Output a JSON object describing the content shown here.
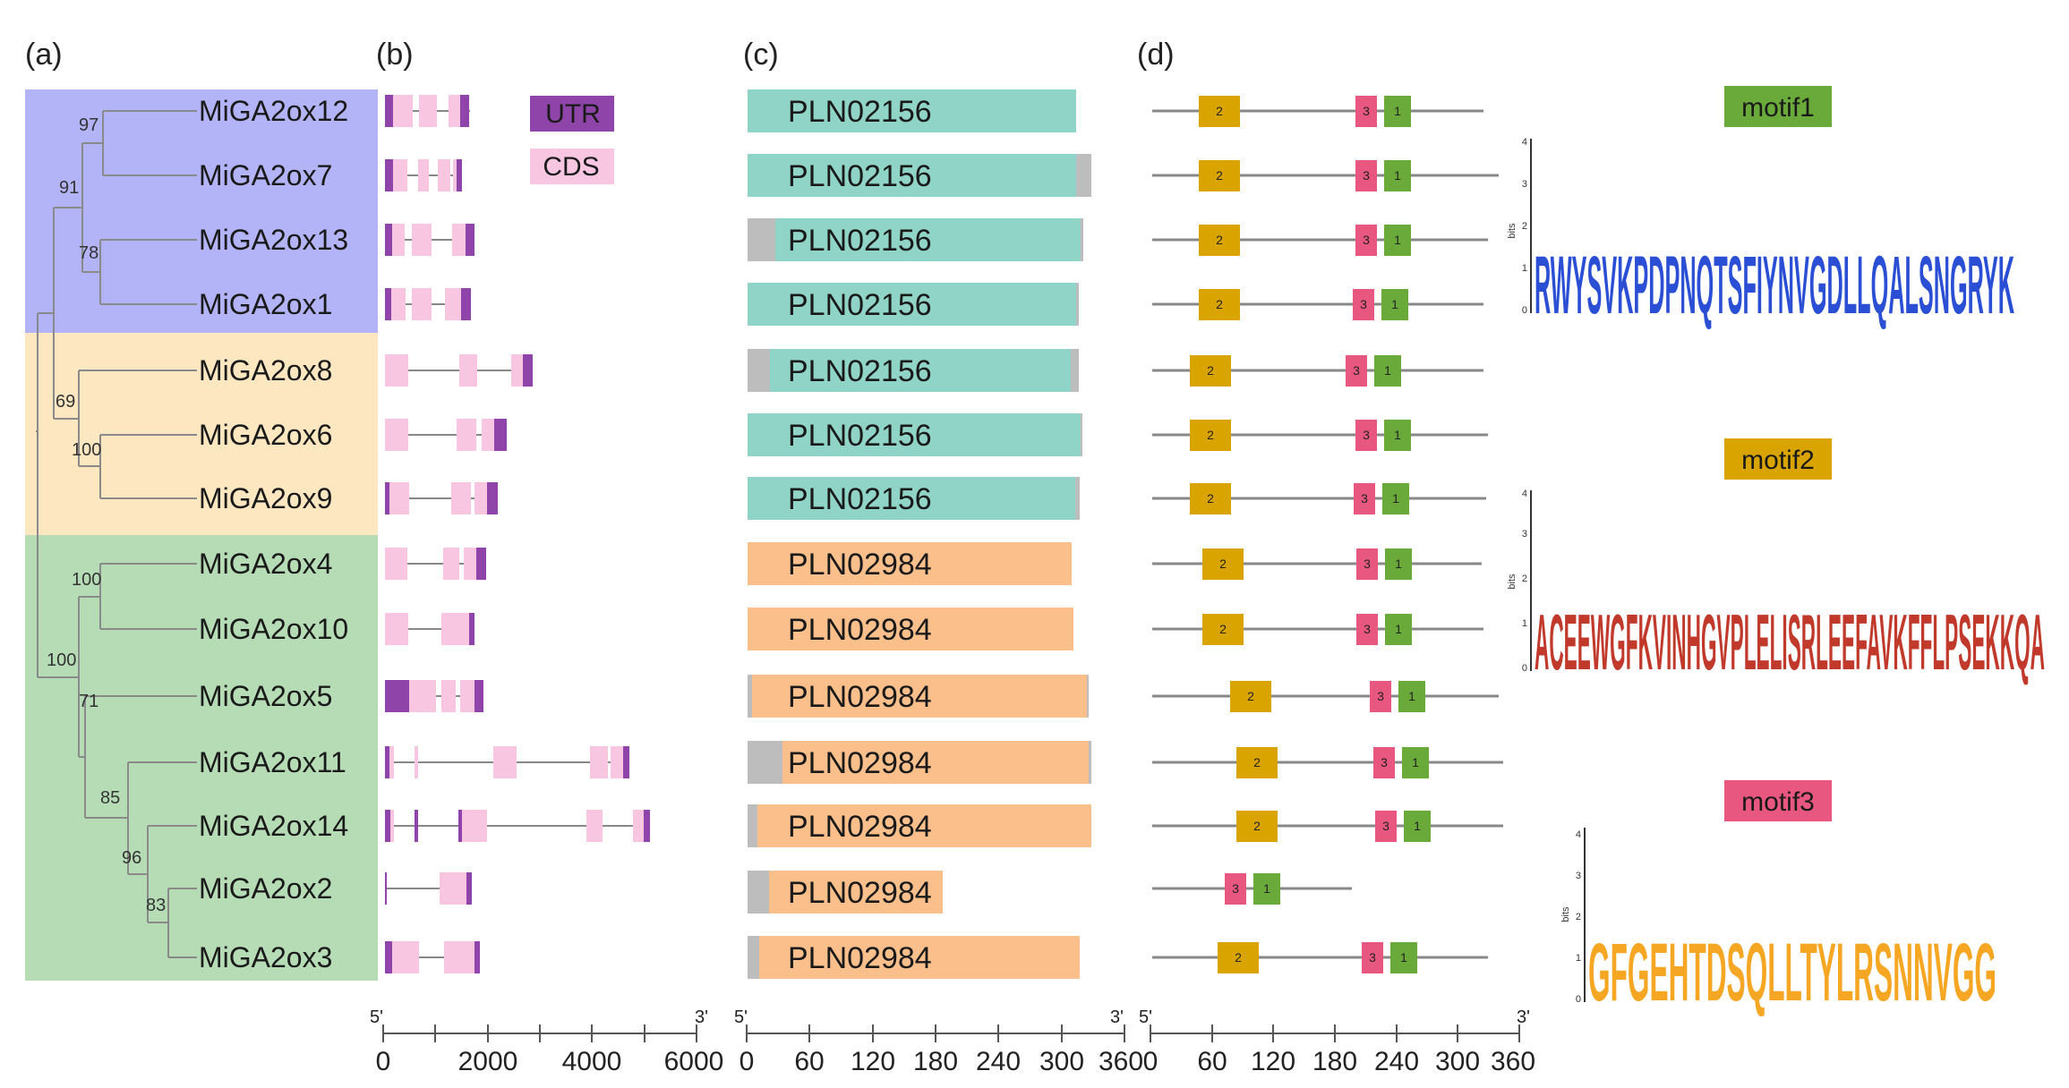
{
  "panels": {
    "a": "(a)",
    "b": "(b)",
    "c": "(c)",
    "d": "(d)"
  },
  "genes": [
    "MiGA2ox12",
    "MiGA2ox7",
    "MiGA2ox13",
    "MiGA2ox1",
    "MiGA2ox8",
    "MiGA2ox6",
    "MiGA2ox9",
    "MiGA2ox4",
    "MiGA2ox10",
    "MiGA2ox5",
    "MiGA2ox11",
    "MiGA2ox14",
    "MiGA2ox2",
    "MiGA2ox3"
  ],
  "bootstrap": [
    "97",
    "91",
    "78",
    "69",
    "100",
    "100",
    "100",
    "71",
    "85",
    "96",
    "83"
  ],
  "legend_b": {
    "utr": "UTR",
    "cds": "CDS"
  },
  "domain_labels": [
    "PLN02156",
    "PLN02156",
    "PLN02156",
    "PLN02156",
    "PLN02156",
    "PLN02156",
    "PLN02156",
    "PLN02984",
    "PLN02984",
    "PLN02984",
    "PLN02984",
    "PLN02984",
    "PLN02984",
    "PLN02984"
  ],
  "motif_numbers": [
    "1",
    "2",
    "3"
  ],
  "axis_end_labels": {
    "five": "5'",
    "three": "3'"
  },
  "axis_b": {
    "ticks": [
      "0",
      "2000",
      "4000",
      "6000"
    ]
  },
  "axis_c": {
    "ticks": [
      "0",
      "60",
      "120",
      "180",
      "240",
      "300",
      "360"
    ]
  },
  "axis_d": {
    "ticks": [
      "0",
      "60",
      "120",
      "180",
      "240",
      "300",
      "360"
    ]
  },
  "logos": [
    {
      "title": "motif1",
      "ylabel": "bits",
      "yticks": [
        "0",
        "1",
        "2",
        "3",
        "4"
      ],
      "consensus": "RWYSVKPDPNQTSFIYNVGDLLQALSNGRYK"
    },
    {
      "title": "motif2",
      "ylabel": "bits",
      "yticks": [
        "0",
        "1",
        "2",
        "3",
        "4"
      ],
      "consensus": "ACEEWGFKVINHGVPLELISRLEEFAVKFFLPSEKKQA"
    },
    {
      "title": "motif3",
      "ylabel": "bits",
      "yticks": [
        "0",
        "1",
        "2",
        "3",
        "4"
      ],
      "consensus": "GFGEHTDSQLLTYLRSNNVGG"
    }
  ],
  "colors": {
    "clade_blue": "#b3b3f7",
    "clade_orange": "#fde7c0",
    "clade_green": "#b6dcb6",
    "utr": "#8e44a8",
    "cds": "#f9c6e2",
    "pln02156": "#8fd4c7",
    "pln02984": "#fbbf8c",
    "motif1": "#6aaa3a",
    "motif2": "#d9a400",
    "motif3": "#e8577f"
  }
}
